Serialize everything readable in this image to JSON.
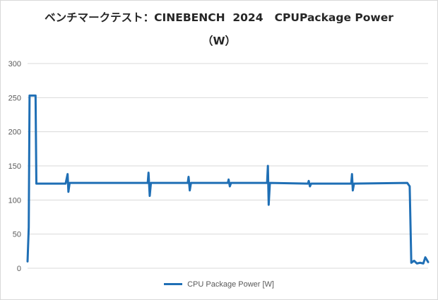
{
  "colors": {
    "series": "#1f6fb5",
    "grid": "#d9d9d9",
    "text": "#595959",
    "title": "#262626"
  },
  "chart_data": {
    "type": "line",
    "title": "ベンチマークテスト：CINEBENCH 2024 CPUPackage Power",
    "title_line_1": "ベンチマークテスト：CINEBENCH  2024   CPUPackage Power",
    "title_line_2": "（W）",
    "xlabel": "",
    "ylabel": "",
    "ylim": [
      0,
      300
    ],
    "yticks": [
      0,
      50,
      100,
      150,
      200,
      250,
      300
    ],
    "xlim": [
      0,
      1000
    ],
    "grid": true,
    "legend_position": "bottom",
    "series": [
      {
        "name": "CPU Package Power [W]",
        "points": [
          [
            0,
            10
          ],
          [
            3,
            60
          ],
          [
            5,
            253
          ],
          [
            20,
            253
          ],
          [
            22,
            124
          ],
          [
            95,
            124
          ],
          [
            100,
            138
          ],
          [
            102,
            112
          ],
          [
            105,
            125
          ],
          [
            300,
            125
          ],
          [
            302,
            140
          ],
          [
            305,
            106
          ],
          [
            308,
            125
          ],
          [
            400,
            125
          ],
          [
            402,
            134
          ],
          [
            405,
            114
          ],
          [
            408,
            125
          ],
          [
            500,
            125
          ],
          [
            502,
            130
          ],
          [
            505,
            120
          ],
          [
            508,
            125
          ],
          [
            598,
            125
          ],
          [
            600,
            150
          ],
          [
            602,
            93
          ],
          [
            605,
            125
          ],
          [
            700,
            124
          ],
          [
            702,
            128
          ],
          [
            705,
            120
          ],
          [
            708,
            124
          ],
          [
            808,
            124
          ],
          [
            810,
            138
          ],
          [
            812,
            114
          ],
          [
            815,
            124
          ],
          [
            948,
            125
          ],
          [
            954,
            120
          ],
          [
            958,
            8
          ],
          [
            965,
            11
          ],
          [
            972,
            7
          ],
          [
            980,
            8
          ],
          [
            988,
            7
          ],
          [
            993,
            16
          ],
          [
            1000,
            9
          ]
        ]
      }
    ]
  }
}
